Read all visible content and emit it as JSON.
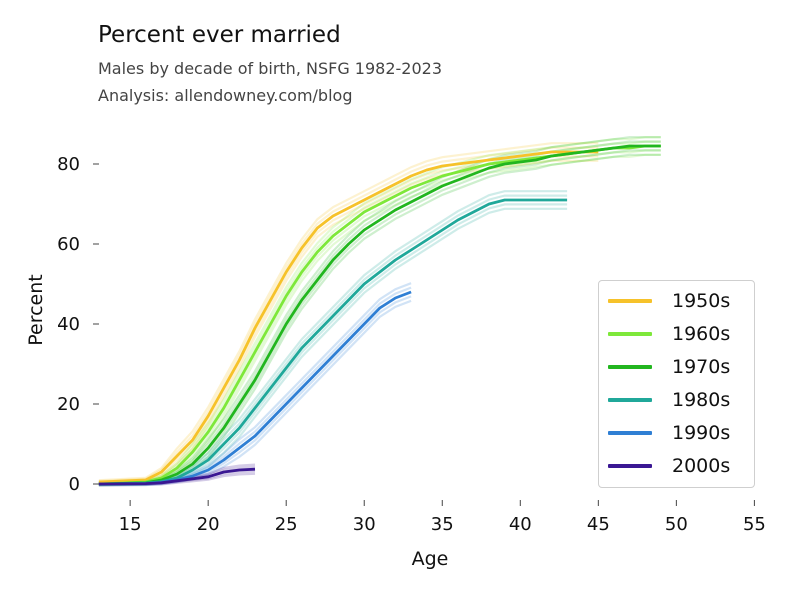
{
  "chart_data": {
    "type": "line",
    "title": "Percent ever married",
    "subtitle": "Males by decade of birth, NSFG 1982-2023",
    "credit": "Analysis: allendowney.com/blog",
    "xlabel": "Age",
    "ylabel": "Percent",
    "xlim": [
      12.3,
      56
    ],
    "ylim": [
      -4,
      88
    ],
    "xticks": [
      15,
      20,
      25,
      30,
      35,
      40,
      45,
      50,
      55
    ],
    "yticks": [
      0,
      20,
      40,
      60,
      80
    ],
    "grid": false,
    "legend_position": "bottom-right",
    "series": [
      {
        "name": "1950s",
        "color": "#f6c22a",
        "x": [
          13,
          16,
          17,
          18,
          19,
          20,
          21,
          22,
          23,
          24,
          25,
          26,
          27,
          28,
          29,
          30,
          31,
          32,
          33,
          34,
          35,
          36,
          37,
          38,
          39,
          40,
          41,
          42,
          43,
          44,
          45
        ],
        "y": [
          0.5,
          1,
          3,
          7,
          11,
          17,
          24,
          31,
          39,
          46,
          53,
          59,
          64,
          67,
          69,
          71,
          73,
          75,
          77,
          78.5,
          79.5,
          80,
          80.5,
          81,
          81.5,
          82,
          82.5,
          83,
          83,
          83,
          83
        ]
      },
      {
        "name": "1960s",
        "color": "#7ee83a",
        "x": [
          13,
          16,
          17,
          18,
          19,
          20,
          21,
          22,
          23,
          24,
          25,
          26,
          27,
          28,
          29,
          30,
          31,
          32,
          33,
          34,
          35,
          36,
          37,
          38,
          39,
          40,
          41,
          42,
          43,
          44,
          45,
          46,
          47,
          48,
          49
        ],
        "y": [
          0,
          0.5,
          1.5,
          4,
          8,
          13,
          19,
          26,
          33,
          40,
          47,
          53,
          58,
          62,
          65,
          68,
          70,
          72,
          74,
          75.5,
          77,
          78,
          79,
          80,
          80.5,
          81,
          81.5,
          82,
          82.5,
          83,
          83.5,
          84,
          84,
          84.5,
          84.5
        ]
      },
      {
        "name": "1970s",
        "color": "#22b61f",
        "x": [
          13,
          16,
          17,
          18,
          19,
          20,
          21,
          22,
          23,
          24,
          25,
          26,
          27,
          28,
          29,
          30,
          31,
          32,
          33,
          34,
          35,
          36,
          37,
          38,
          39,
          40,
          41,
          42,
          43,
          44,
          45,
          46,
          47,
          48,
          49
        ],
        "y": [
          0,
          0.3,
          1,
          2.5,
          5,
          9,
          14,
          20,
          26,
          33,
          40,
          46,
          51,
          56,
          60,
          63.5,
          66,
          68.5,
          70.5,
          72.5,
          74.5,
          76,
          77.5,
          79,
          80,
          80.5,
          81,
          82,
          82.5,
          83,
          83.5,
          84,
          84.5,
          84.5,
          84.5
        ]
      },
      {
        "name": "1980s",
        "color": "#20a89a",
        "x": [
          13,
          16,
          17,
          18,
          19,
          20,
          21,
          22,
          23,
          24,
          25,
          26,
          27,
          28,
          29,
          30,
          31,
          32,
          33,
          34,
          35,
          36,
          37,
          38,
          39,
          40,
          41,
          42,
          43
        ],
        "y": [
          0,
          0.2,
          0.6,
          1.5,
          3.5,
          6,
          10,
          14,
          19,
          24,
          29,
          34,
          38,
          42,
          46,
          50,
          53,
          56,
          58.5,
          61,
          63.5,
          66,
          68,
          70,
          71,
          71,
          71,
          71,
          71
        ]
      },
      {
        "name": "1990s",
        "color": "#2f7fd4",
        "x": [
          13,
          16,
          17,
          18,
          19,
          20,
          21,
          22,
          23,
          24,
          25,
          26,
          27,
          28,
          29,
          30,
          31,
          32,
          33
        ],
        "y": [
          0,
          0.1,
          0.4,
          1,
          2,
          3.5,
          6,
          9,
          12,
          16,
          20,
          24,
          28,
          32,
          36,
          40,
          44,
          46.5,
          48
        ]
      },
      {
        "name": "2000s",
        "color": "#3a1793",
        "x": [
          13,
          16,
          17,
          18,
          19,
          20,
          21,
          22,
          23
        ],
        "y": [
          0,
          0.1,
          0.3,
          0.8,
          1.3,
          1.8,
          3,
          3.5,
          3.7
        ]
      }
    ]
  }
}
